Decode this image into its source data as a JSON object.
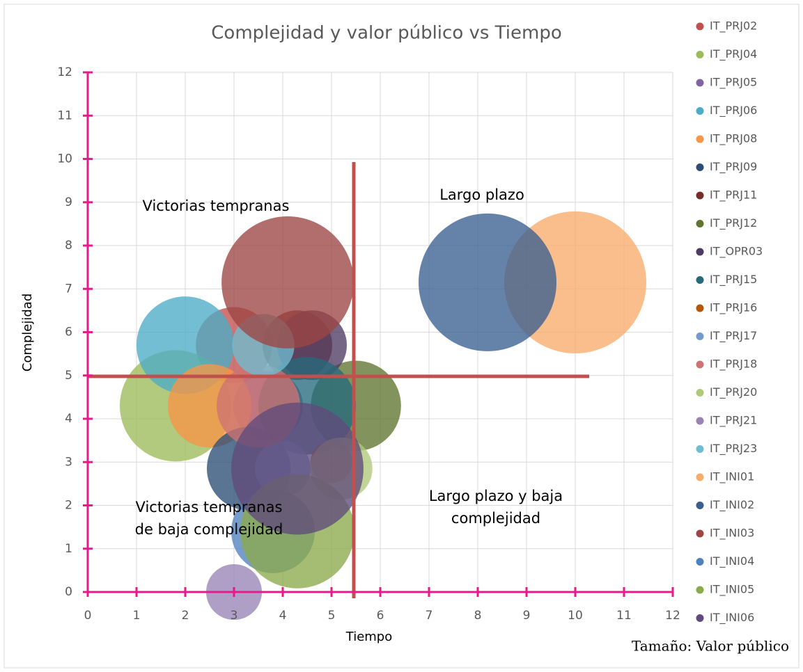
{
  "chart_data": {
    "type": "bubble",
    "title": "Complejidad y valor público vs Tiempo",
    "x_label": "Tiempo",
    "y_label": "Complejidad",
    "size_label": "Tamaño: Valor público",
    "xlim": [
      0,
      12
    ],
    "ylim": [
      0,
      12
    ],
    "xticks": [
      0,
      1,
      2,
      3,
      4,
      5,
      6,
      7,
      8,
      9,
      10,
      11,
      12
    ],
    "yticks": [
      0,
      1,
      2,
      3,
      4,
      5,
      6,
      7,
      8,
      9,
      10,
      11,
      12
    ],
    "grid": true,
    "legend": "right",
    "annotations": [
      [
        "Victorias tempranas"
      ],
      [
        "Largo plazo"
      ],
      [
        "Victorias tempranas",
        "de baja complejidad"
      ],
      [
        "Largo plazo y baja",
        "complejidad"
      ]
    ],
    "series": [
      {
        "name": "IT_PRJ02",
        "color": "#c0504d",
        "x": [
          3.0
        ],
        "values": [
          5.7
        ],
        "sizes": [
          30
        ]
      },
      {
        "name": "IT_PRJ04",
        "color": "#9bbb59",
        "x": [
          1.8
        ],
        "values": [
          4.3
        ],
        "sizes": [
          64
        ]
      },
      {
        "name": "IT_PRJ05",
        "color": "#8064a2",
        "x": [
          3.7
        ],
        "values": [
          4.3
        ],
        "sizes": [
          25
        ]
      },
      {
        "name": "IT_PRJ06",
        "color": "#4bacc6",
        "x": [
          2.0
        ],
        "values": [
          5.7
        ],
        "sizes": [
          49
        ]
      },
      {
        "name": "IT_PRJ08",
        "color": "#f79646",
        "x": [
          2.5
        ],
        "values": [
          4.3
        ],
        "sizes": [
          36
        ]
      },
      {
        "name": "IT_PRJ09",
        "color": "#2c4d75",
        "x": [
          3.3
        ],
        "values": [
          2.85
        ],
        "sizes": [
          36
        ]
      },
      {
        "name": "IT_PRJ11",
        "color": "#772c2a",
        "x": [
          4.3
        ],
        "values": [
          5.7
        ],
        "sizes": [
          25
        ]
      },
      {
        "name": "IT_PRJ12",
        "color": "#5f7530",
        "x": [
          5.5
        ],
        "values": [
          4.3
        ],
        "sizes": [
          42
        ]
      },
      {
        "name": "IT_OPR03",
        "color": "#4d3b62",
        "x": [
          4.6
        ],
        "values": [
          5.7
        ],
        "sizes": [
          25
        ]
      },
      {
        "name": "IT_PRJ15",
        "color": "#276a7c",
        "x": [
          4.5
        ],
        "values": [
          4.3
        ],
        "sizes": [
          49
        ]
      },
      {
        "name": "IT_PRJ16",
        "color": "#b65708",
        "x": [
          5.0
        ],
        "values": [
          3.0
        ],
        "sizes": [
          9
        ]
      },
      {
        "name": "IT_PRJ17",
        "color": "#729aca",
        "x": [
          4.0
        ],
        "values": [
          2.85
        ],
        "sizes": [
          16
        ]
      },
      {
        "name": "IT_PRJ18",
        "color": "#cd7371",
        "x": [
          3.5
        ],
        "values": [
          4.3
        ],
        "sizes": [
          36
        ]
      },
      {
        "name": "IT_PRJ20",
        "color": "#afc97a",
        "x": [
          5.2
        ],
        "values": [
          2.85
        ],
        "sizes": [
          20
        ]
      },
      {
        "name": "IT_PRJ21",
        "color": "#9983b5",
        "x": [
          3.0
        ],
        "values": [
          0
        ],
        "sizes": [
          16
        ]
      },
      {
        "name": "IT_PRJ23",
        "color": "#6fbdd1",
        "x": [
          3.6
        ],
        "values": [
          5.7
        ],
        "sizes": [
          20
        ]
      },
      {
        "name": "IT_INI01",
        "color": "#f9ab6b",
        "x": [
          10.0
        ],
        "values": [
          7.15
        ],
        "sizes": [
          104
        ]
      },
      {
        "name": "IT_INI02",
        "color": "#3a5f8f",
        "x": [
          8.2
        ],
        "values": [
          7.15
        ],
        "sizes": [
          98
        ]
      },
      {
        "name": "IT_INI03",
        "color": "#9c4543",
        "x": [
          4.1
        ],
        "values": [
          7.15
        ],
        "sizes": [
          90
        ]
      },
      {
        "name": "IT_INI04",
        "color": "#4f81bd",
        "x": [
          3.8
        ],
        "values": [
          1.4
        ],
        "sizes": [
          36
        ]
      },
      {
        "name": "IT_INI05",
        "color": "#8aab4a",
        "x": [
          4.3
        ],
        "values": [
          1.4
        ],
        "sizes": [
          67
        ]
      },
      {
        "name": "IT_INI06",
        "color": "#604a7b",
        "x": [
          4.3
        ],
        "values": [
          2.85
        ],
        "sizes": [
          90
        ]
      }
    ]
  }
}
